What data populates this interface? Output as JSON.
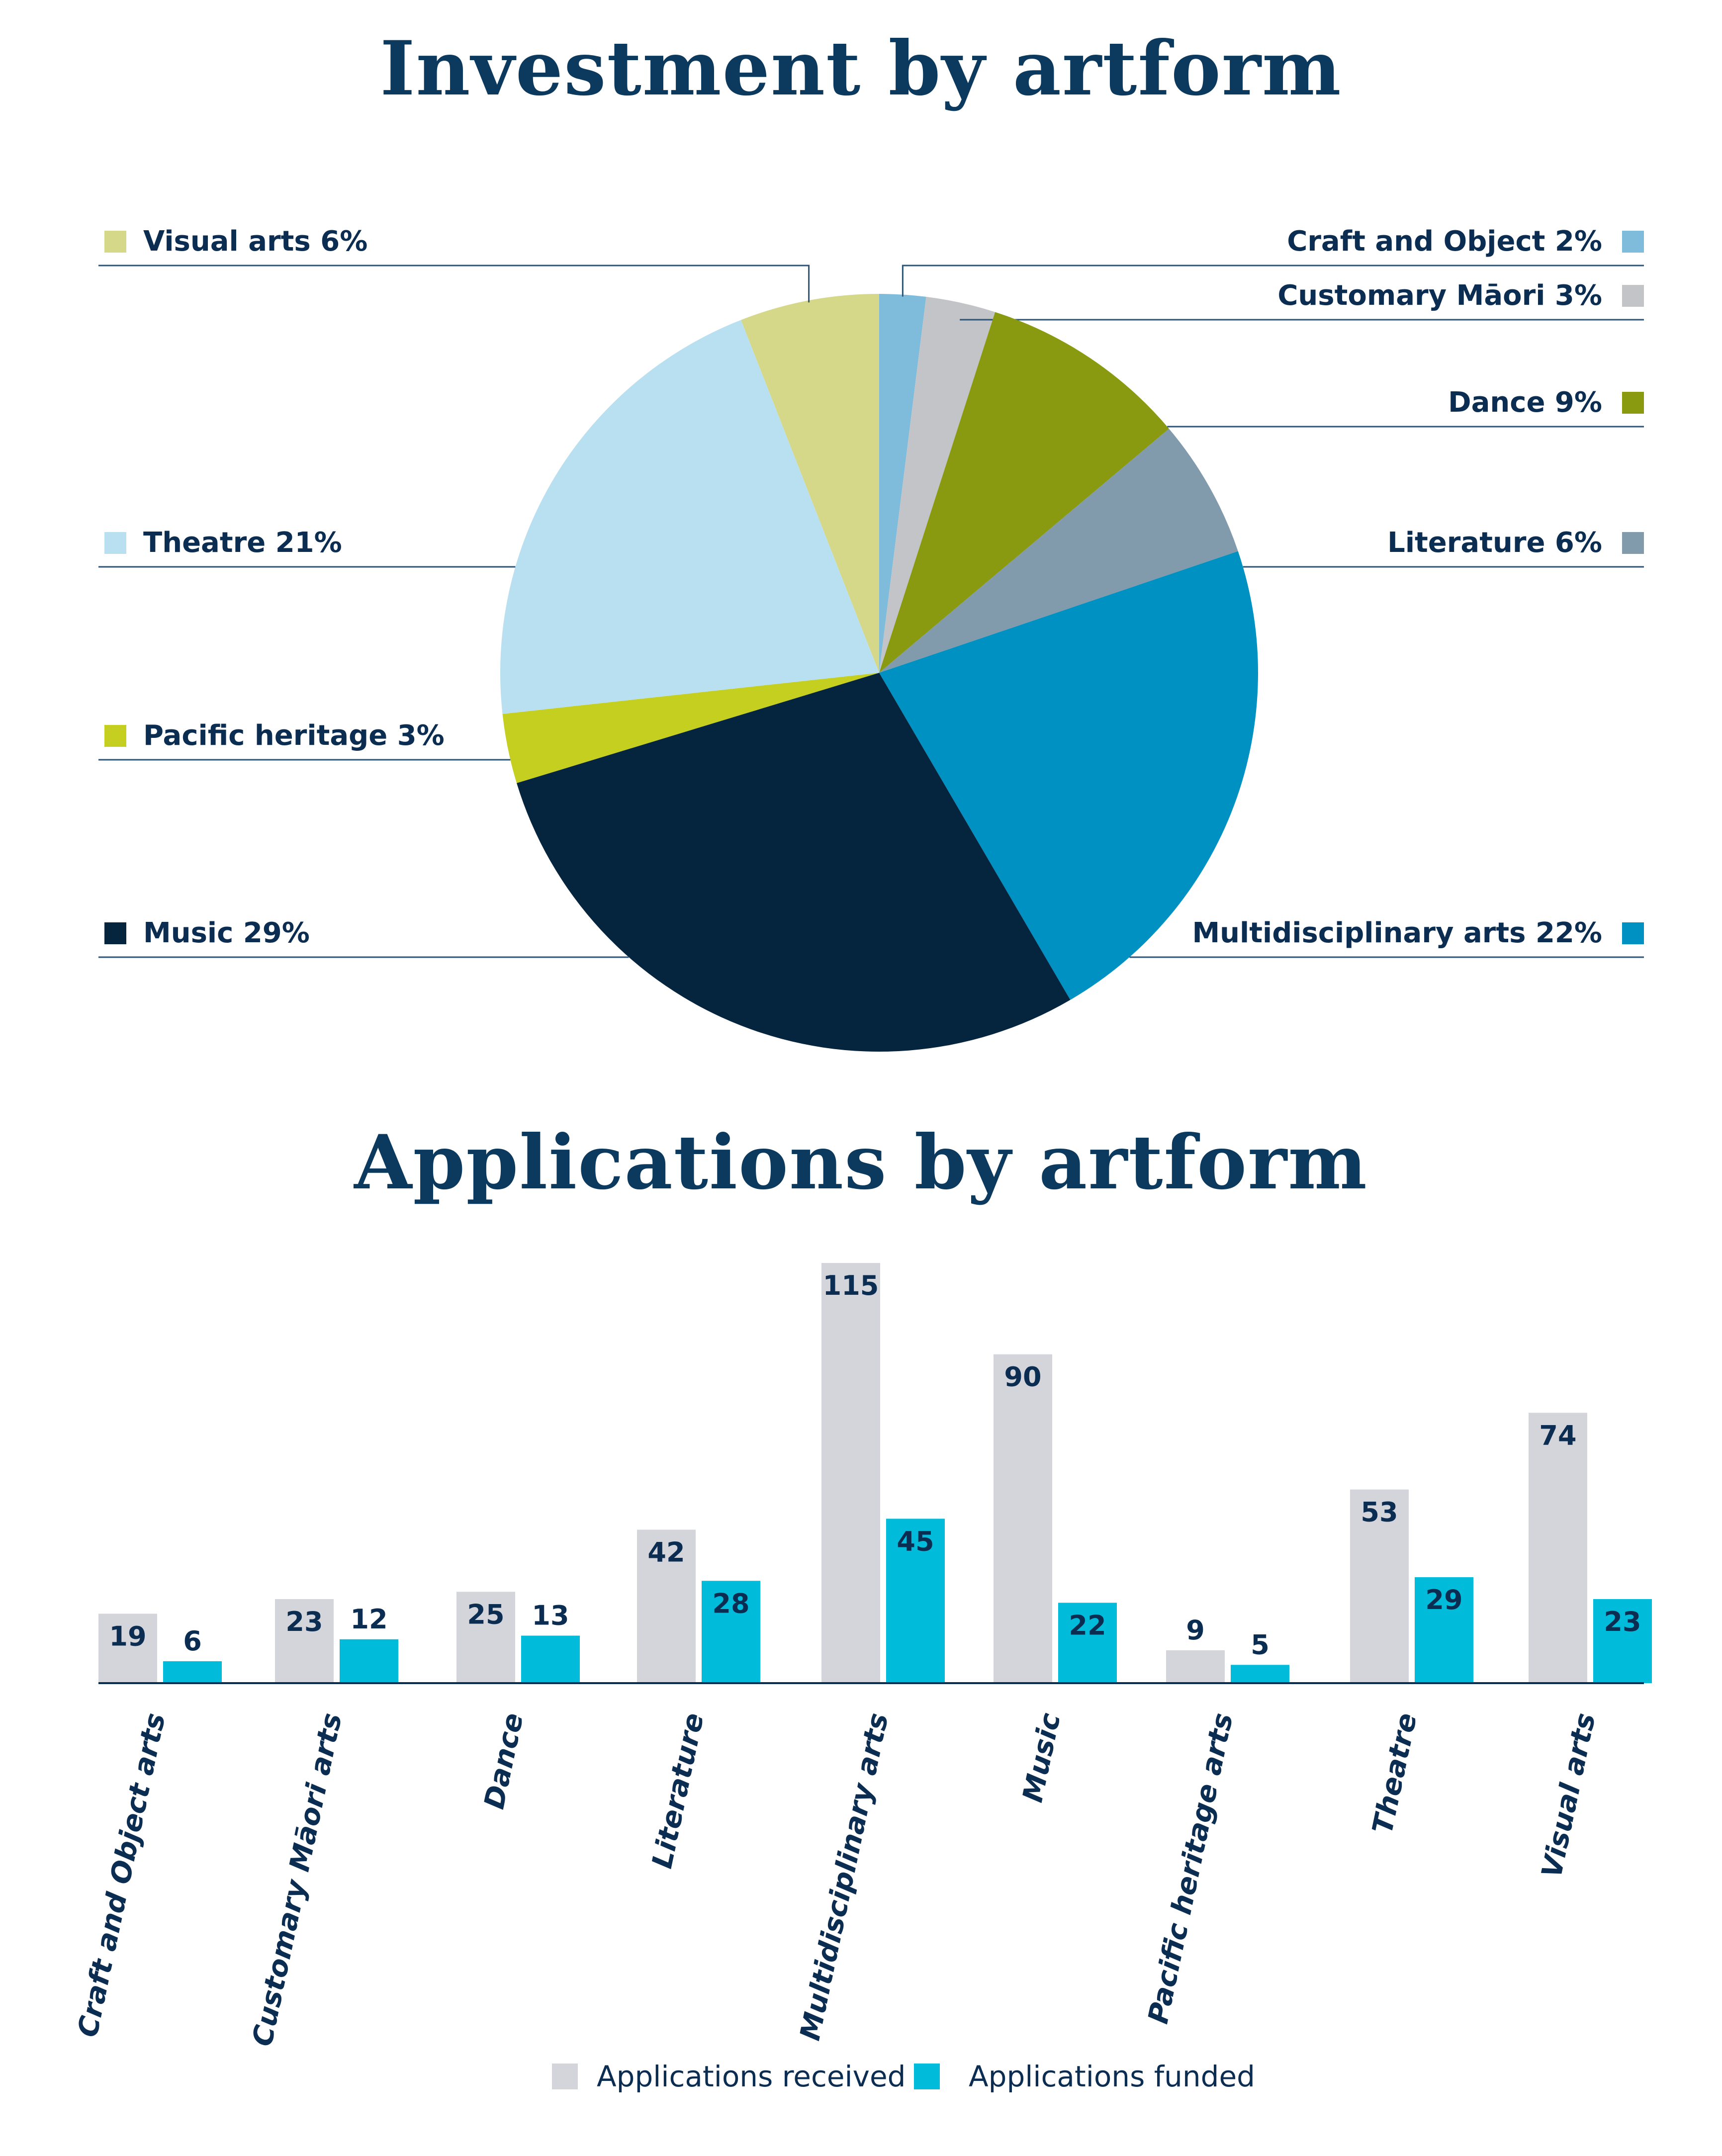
{
  "pie_title": "Investment by artform",
  "bar_title": "Applications by artform",
  "chart_data": [
    {
      "type": "pie",
      "title": "Investment by artform",
      "slices": [
        {
          "label": "Craft and Object",
          "value": 2,
          "value_label": "2%",
          "color": "#7fbcdb"
        },
        {
          "label": "Customary Māori",
          "value": 3,
          "value_label": "3%",
          "color": "#c3c4c7"
        },
        {
          "label": "Dance",
          "value": 9,
          "value_label": "9%",
          "color": "#8a9a10"
        },
        {
          "label": "Literature",
          "value": 6,
          "value_label": "6%",
          "color": "#819bad"
        },
        {
          "label": "Multidisciplinary arts",
          "value": 22,
          "value_label": "22%",
          "color": "#0091c3"
        },
        {
          "label": "Music",
          "value": 29,
          "value_label": "29%",
          "color": "#05243e"
        },
        {
          "label": "Pacific heritage",
          "value": 3,
          "value_label": "3%",
          "color": "#c4cf20"
        },
        {
          "label": "Theatre",
          "value": 21,
          "value_label": "21%",
          "color": "#b9e0f0"
        },
        {
          "label": "Visual arts",
          "value": 6,
          "value_label": "6%",
          "color": "#d5d889"
        }
      ]
    },
    {
      "type": "bar",
      "title": "Applications by artform",
      "categories": [
        "Craft and Object arts",
        "Customary Māori arts",
        "Dance",
        "Literature",
        "Multidisciplinary arts",
        "Music",
        "Pacific heritage arts",
        "Theatre",
        "Visual arts"
      ],
      "series": [
        {
          "name": "Applications received",
          "color": "#d4d4db",
          "values": [
            19,
            23,
            25,
            42,
            115,
            90,
            9,
            53,
            74
          ]
        },
        {
          "name": "Applications funded",
          "color": "#00bcda",
          "values": [
            6,
            12,
            13,
            28,
            45,
            22,
            5,
            29,
            23
          ]
        }
      ],
      "ylim": [
        0,
        115
      ],
      "legend": "bottom"
    }
  ]
}
